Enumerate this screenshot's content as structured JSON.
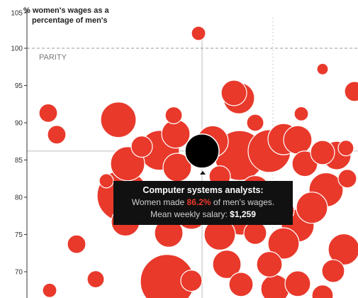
{
  "chart_data": {
    "type": "scatter",
    "ylabel_line1": "% women's wages as a",
    "ylabel_line2": "percentage of men's",
    "yticks": [
      "105",
      "100",
      "95",
      "90",
      "85",
      "80",
      "75",
      "70"
    ],
    "ylim": [
      66.5,
      105
    ],
    "parity_label": "PARITY",
    "parity_value": 100,
    "highlight_color": "#000000",
    "bubble_color": "#e8392b",
    "points": [
      {
        "x": 280,
        "y": 102,
        "r": 10
      },
      {
        "x": 455,
        "y": 97.2,
        "r": 8
      },
      {
        "x": 68,
        "y": 91.3,
        "r": 13
      },
      {
        "x": 80,
        "y": 88.4,
        "r": 13
      },
      {
        "x": 167,
        "y": 90.4,
        "r": 25
      },
      {
        "x": 330,
        "y": 94.0,
        "r": 18
      },
      {
        "x": 337,
        "y": 93.3,
        "r": 22
      },
      {
        "x": 500,
        "y": 94.2,
        "r": 14
      },
      {
        "x": 245,
        "y": 91.0,
        "r": 12
      },
      {
        "x": 225,
        "y": 86.3,
        "r": 28
      },
      {
        "x": 248,
        "y": 88.5,
        "r": 20
      },
      {
        "x": 300,
        "y": 87.5,
        "r": 22
      },
      {
        "x": 180,
        "y": 84.5,
        "r": 24
      },
      {
        "x": 338,
        "y": 85.6,
        "r": 35
      },
      {
        "x": 360,
        "y": 90.0,
        "r": 12
      },
      {
        "x": 400,
        "y": 87.8,
        "r": 22
      },
      {
        "x": 380,
        "y": 86.2,
        "r": 30
      },
      {
        "x": 420,
        "y": 87.7,
        "r": 20
      },
      {
        "x": 425,
        "y": 91.2,
        "r": 10
      },
      {
        "x": 430,
        "y": 84.5,
        "r": 18
      },
      {
        "x": 455,
        "y": 86.0,
        "r": 17
      },
      {
        "x": 475,
        "y": 85.6,
        "r": 20
      },
      {
        "x": 488,
        "y": 86.6,
        "r": 11
      },
      {
        "x": 460,
        "y": 81.0,
        "r": 24
      },
      {
        "x": 490,
        "y": 82.5,
        "r": 13
      },
      {
        "x": 440,
        "y": 78.6,
        "r": 22
      },
      {
        "x": 420,
        "y": 76.2,
        "r": 23
      },
      {
        "x": 400,
        "y": 73.8,
        "r": 22
      },
      {
        "x": 380,
        "y": 71.0,
        "r": 18
      },
      {
        "x": 388,
        "y": 67.7,
        "r": 20
      },
      {
        "x": 360,
        "y": 81.0,
        "r": 20
      },
      {
        "x": 340,
        "y": 77.6,
        "r": 28
      },
      {
        "x": 310,
        "y": 75.0,
        "r": 22
      },
      {
        "x": 320,
        "y": 71.0,
        "r": 20
      },
      {
        "x": 300,
        "y": 79.4,
        "r": 30
      },
      {
        "x": 270,
        "y": 77.8,
        "r": 22
      },
      {
        "x": 238,
        "y": 75.2,
        "r": 20
      },
      {
        "x": 236,
        "y": 68.7,
        "r": 38
      },
      {
        "x": 173,
        "y": 80.2,
        "r": 36
      },
      {
        "x": 177,
        "y": 76.7,
        "r": 20
      },
      {
        "x": 150,
        "y": 82.2,
        "r": 10
      },
      {
        "x": 108,
        "y": 73.7,
        "r": 13
      },
      {
        "x": 135,
        "y": 69.0,
        "r": 12
      },
      {
        "x": 70,
        "y": 67.5,
        "r": 10
      },
      {
        "x": 340,
        "y": 68.3,
        "r": 17
      },
      {
        "x": 270,
        "y": 68.8,
        "r": 15
      },
      {
        "x": 420,
        "y": 68.4,
        "r": 18
      },
      {
        "x": 485,
        "y": 73.0,
        "r": 22
      },
      {
        "x": 470,
        "y": 70.1,
        "r": 16
      },
      {
        "x": 455,
        "y": 66.8,
        "r": 15
      },
      {
        "x": 400,
        "y": 78.2,
        "r": 15
      },
      {
        "x": 215,
        "y": 81.0,
        "r": 12
      },
      {
        "x": 250,
        "y": 84.0,
        "r": 20
      },
      {
        "x": 200,
        "y": 86.8,
        "r": 15
      },
      {
        "x": 310,
        "y": 82.8,
        "r": 15
      },
      {
        "x": 360,
        "y": 75.2,
        "r": 16
      }
    ],
    "highlight": {
      "x": 285,
      "y": 86.2,
      "r": 24
    },
    "crosshair_x": 285,
    "crosshair_x2": 385
  },
  "tooltip": {
    "title": "Computer systems analysts:",
    "line2_prefix": "Women made ",
    "line2_pct": "86.2%",
    "line2_suffix": " of men's wages.",
    "line3_prefix": "Mean weekly salary: ",
    "line3_salary": "$1,259"
  }
}
